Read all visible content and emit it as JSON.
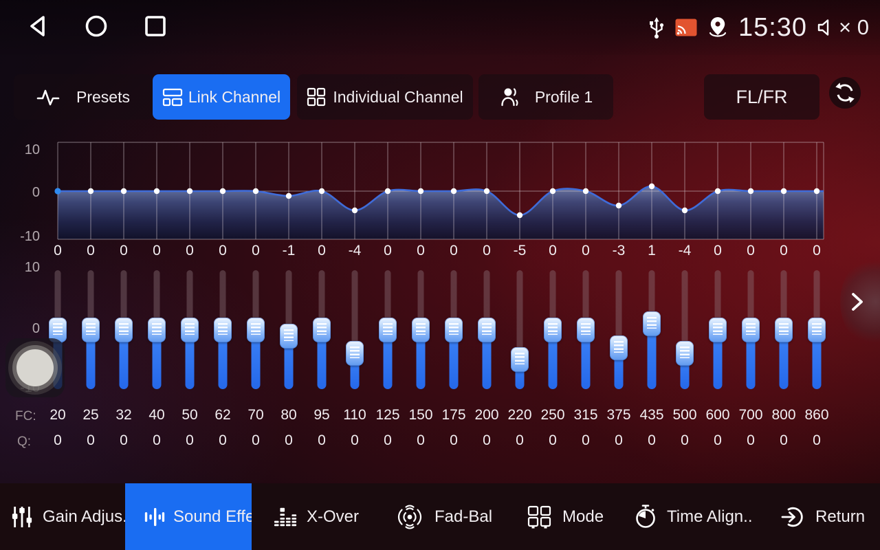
{
  "status_bar": {
    "time": "15:30",
    "volume_text": "× 0",
    "icons": [
      "usb-icon",
      "cast-icon",
      "location-icon",
      "volume-muted-icon"
    ]
  },
  "android_nav": {
    "icons": [
      "back-icon",
      "home-icon",
      "recents-icon"
    ]
  },
  "tabs": {
    "presets": "Presets",
    "link_channel": "Link Channel",
    "individual_channel": "Individual Channel",
    "profile": "Profile 1",
    "channel_pair": "FL/FR",
    "icons": [
      "pulse-icon",
      "link-channel-icon",
      "grid-icon",
      "profile-icon",
      "refresh-icon"
    ]
  },
  "equalizer": {
    "graph_axis": {
      "max": "10",
      "mid": "0",
      "min": "-10"
    },
    "slider_axis": {
      "max": "10",
      "mid": "0",
      "min": "-10"
    },
    "fc_label": "FC:",
    "q_label": "Q:",
    "bands": [
      {
        "fc": "20",
        "gain": 0,
        "q": "0"
      },
      {
        "fc": "25",
        "gain": 0,
        "q": "0"
      },
      {
        "fc": "32",
        "gain": 0,
        "q": "0"
      },
      {
        "fc": "40",
        "gain": 0,
        "q": "0"
      },
      {
        "fc": "50",
        "gain": 0,
        "q": "0"
      },
      {
        "fc": "62",
        "gain": 0,
        "q": "0"
      },
      {
        "fc": "70",
        "gain": 0,
        "q": "0"
      },
      {
        "fc": "80",
        "gain": -1,
        "q": "0"
      },
      {
        "fc": "95",
        "gain": 0,
        "q": "0"
      },
      {
        "fc": "110",
        "gain": -4,
        "q": "0"
      },
      {
        "fc": "125",
        "gain": 0,
        "q": "0"
      },
      {
        "fc": "150",
        "gain": 0,
        "q": "0"
      },
      {
        "fc": "175",
        "gain": 0,
        "q": "0"
      },
      {
        "fc": "200",
        "gain": 0,
        "q": "0"
      },
      {
        "fc": "220",
        "gain": -5,
        "q": "0"
      },
      {
        "fc": "250",
        "gain": 0,
        "q": "0"
      },
      {
        "fc": "315",
        "gain": 0,
        "q": "0"
      },
      {
        "fc": "375",
        "gain": -3,
        "q": "0"
      },
      {
        "fc": "435",
        "gain": 1,
        "q": "0"
      },
      {
        "fc": "500",
        "gain": -4,
        "q": "0"
      },
      {
        "fc": "600",
        "gain": 0,
        "q": "0"
      },
      {
        "fc": "700",
        "gain": 0,
        "q": "0"
      },
      {
        "fc": "800",
        "gain": 0,
        "q": "0"
      },
      {
        "fc": "860",
        "gain": 0,
        "q": "0"
      }
    ]
  },
  "pager": {
    "icon": "chevron-right-icon"
  },
  "bottom_nav": {
    "items": [
      {
        "label": "Gain Adjus..",
        "icon": "gain-adjust-icon",
        "active": false
      },
      {
        "label": "Sound Effect",
        "icon": "sound-effect-icon",
        "active": true
      },
      {
        "label": "X-Over",
        "icon": "x-over-icon",
        "active": false
      },
      {
        "label": "Fad-Bal",
        "icon": "fad-bal-icon",
        "active": false
      },
      {
        "label": "Mode",
        "icon": "mode-icon",
        "active": false
      },
      {
        "label": "Time Align..",
        "icon": "time-align-icon",
        "active": false
      },
      {
        "label": "Return",
        "icon": "return-icon",
        "active": false
      }
    ]
  },
  "colors": {
    "accent": "#1a6df2",
    "slider_blue": "#2b74f2",
    "curve_blue": "#3f6cd9",
    "cast_orange": "#e25430",
    "first_point_blue": "#2f8af0"
  }
}
